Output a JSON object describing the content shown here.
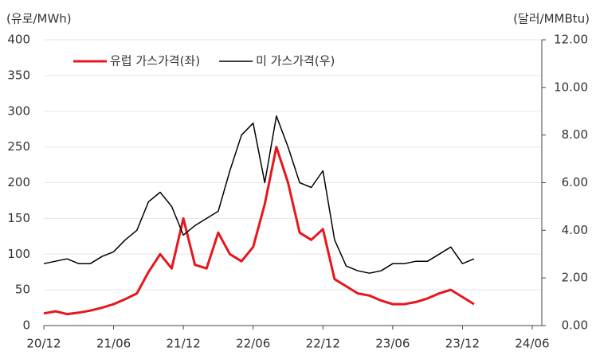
{
  "chart_data": {
    "type": "line",
    "y_label": "(유로/MWh)",
    "y2_label": "(달러/MMBtu)",
    "x": [
      "20/12",
      "21/01",
      "21/02",
      "21/03",
      "21/04",
      "21/05",
      "21/06",
      "21/07",
      "21/08",
      "21/09",
      "21/10",
      "21/11",
      "21/12",
      "22/01",
      "22/02",
      "22/03",
      "22/04",
      "22/05",
      "22/06",
      "22/07",
      "22/08",
      "22/09",
      "22/10",
      "22/11",
      "22/12",
      "23/01",
      "23/02",
      "23/03",
      "23/04",
      "23/05",
      "23/06",
      "23/07",
      "23/08",
      "23/09",
      "23/10",
      "23/11",
      "23/12",
      "24/01"
    ],
    "xlim": [
      "20/12",
      "24/06"
    ],
    "xticks": [
      "20/12",
      "21/06",
      "21/12",
      "22/06",
      "22/12",
      "23/06",
      "23/12",
      "24/06"
    ],
    "ylim": [
      0,
      400
    ],
    "yticks": [
      0,
      50,
      100,
      150,
      200,
      250,
      300,
      350,
      400
    ],
    "y2lim": [
      0,
      12
    ],
    "y2ticks": [
      {
        "value": 0,
        "label": "0.00"
      },
      {
        "value": 2,
        "label": "2.00"
      },
      {
        "value": 4,
        "label": "4.00"
      },
      {
        "value": 6,
        "label": "6.00"
      },
      {
        "value": 8,
        "label": "8.00"
      },
      {
        "value": 10,
        "label": "10.00"
      },
      {
        "value": 12,
        "label": "12.00"
      }
    ],
    "grid": true,
    "legend": "top-left",
    "series": [
      {
        "name": "유럽 가스가격(좌)",
        "color": "#e8161c",
        "axis": "y",
        "values": [
          17,
          20,
          16,
          18,
          21,
          25,
          30,
          37,
          45,
          75,
          100,
          80,
          150,
          85,
          80,
          130,
          100,
          90,
          110,
          170,
          250,
          200,
          130,
          120,
          135,
          65,
          55,
          45,
          42,
          35,
          30,
          30,
          33,
          38,
          45,
          50,
          40,
          30
        ]
      },
      {
        "name": "미 가스가격(우)",
        "color": "#000000",
        "axis": "y2",
        "values": [
          2.6,
          2.7,
          2.8,
          2.6,
          2.6,
          2.9,
          3.1,
          3.6,
          4.0,
          5.2,
          5.6,
          5.0,
          3.8,
          4.2,
          4.5,
          4.8,
          6.5,
          8.0,
          8.5,
          6.0,
          8.8,
          7.5,
          6.0,
          5.8,
          6.5,
          3.6,
          2.5,
          2.3,
          2.2,
          2.3,
          2.6,
          2.6,
          2.7,
          2.7,
          3.0,
          3.3,
          2.6,
          2.8
        ]
      }
    ]
  }
}
